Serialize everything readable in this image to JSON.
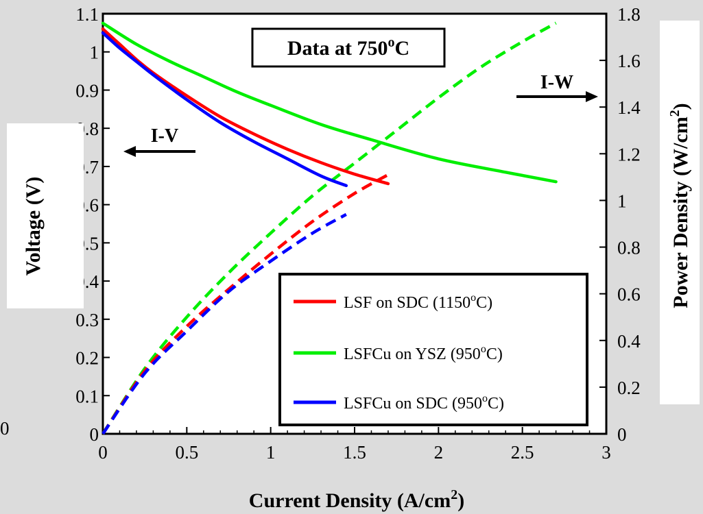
{
  "chart_data": {
    "type": "line",
    "title": "",
    "annotation_box": "Data at 750",
    "annotation_sup": "o",
    "annotation_tail": "C",
    "annotation_iv": "I-V",
    "annotation_iw": "I-W",
    "xlabel": "Current Density (A/cm",
    "xlabel_sup": "2",
    "xlabel_tail": ")",
    "ylabel": "Voltage (V)",
    "y2label": "Power Density (W/cm",
    "y2label_sup": "2",
    "y2label_tail": ")",
    "xlim": [
      0,
      3
    ],
    "ylim": [
      0,
      1.1
    ],
    "y2lim": [
      0,
      1.8
    ],
    "x_ticks": [
      "0",
      "0.5",
      "1",
      "1.5",
      "2",
      "2.5",
      "3"
    ],
    "y_ticks": [
      "0",
      "0.1",
      "0.2",
      "0.3",
      "0.4",
      "0.5",
      "0.6",
      "0.7",
      "0.8",
      "0.9",
      "1",
      "1.1"
    ],
    "y2_ticks": [
      "0",
      "0.2",
      "0.4",
      "0.6",
      "0.8",
      "1",
      "1.2",
      "1.4",
      "1.6",
      "1.8"
    ],
    "stray_label": "0",
    "legend_position": "bottom-right",
    "colors": {
      "red": "#ff0000",
      "green": "#00ee00",
      "blue": "#0000ff"
    },
    "series": [
      {
        "name": "LSF on SDC (1150",
        "name_sup": "o",
        "name_tail": "C)",
        "color": "#ff0000",
        "voltage": {
          "x": [
            0,
            0.1,
            0.2,
            0.3,
            0.5,
            0.7,
            0.9,
            1.1,
            1.3,
            1.5,
            1.7
          ],
          "y": [
            1.06,
            1.02,
            0.98,
            0.945,
            0.885,
            0.83,
            0.785,
            0.745,
            0.71,
            0.68,
            0.655
          ]
        },
        "power": {
          "x": [
            0,
            0.25,
            0.5,
            0.75,
            1.0,
            1.25,
            1.5,
            1.7
          ],
          "y": [
            0,
            0.27,
            0.46,
            0.62,
            0.77,
            0.91,
            1.03,
            1.11
          ]
        }
      },
      {
        "name": "LSFCu on YSZ (950",
        "name_sup": "o",
        "name_tail": "C)",
        "color": "#00ee00",
        "voltage": {
          "x": [
            0,
            0.2,
            0.4,
            0.6,
            0.8,
            1.0,
            1.3,
            1.6,
            2.0,
            2.4,
            2.7
          ],
          "y": [
            1.075,
            1.02,
            0.975,
            0.935,
            0.895,
            0.86,
            0.81,
            0.77,
            0.72,
            0.685,
            0.66
          ]
        },
        "power": {
          "x": [
            0,
            0.25,
            0.5,
            0.75,
            1.0,
            1.25,
            1.5,
            1.75,
            2.0,
            2.25,
            2.5,
            2.7
          ],
          "y": [
            0,
            0.28,
            0.5,
            0.69,
            0.86,
            1.02,
            1.16,
            1.3,
            1.44,
            1.57,
            1.68,
            1.76
          ]
        }
      },
      {
        "name": "LSFCu on SDC (950",
        "name_sup": "o",
        "name_tail": "C)",
        "color": "#0000ff",
        "voltage": {
          "x": [
            0,
            0.1,
            0.2,
            0.3,
            0.5,
            0.7,
            0.9,
            1.1,
            1.3,
            1.45
          ],
          "y": [
            1.05,
            1.01,
            0.975,
            0.94,
            0.875,
            0.815,
            0.765,
            0.72,
            0.675,
            0.65
          ]
        },
        "power": {
          "x": [
            0,
            0.25,
            0.5,
            0.75,
            1.0,
            1.25,
            1.45
          ],
          "y": [
            0,
            0.26,
            0.44,
            0.61,
            0.74,
            0.86,
            0.94
          ]
        }
      }
    ]
  }
}
